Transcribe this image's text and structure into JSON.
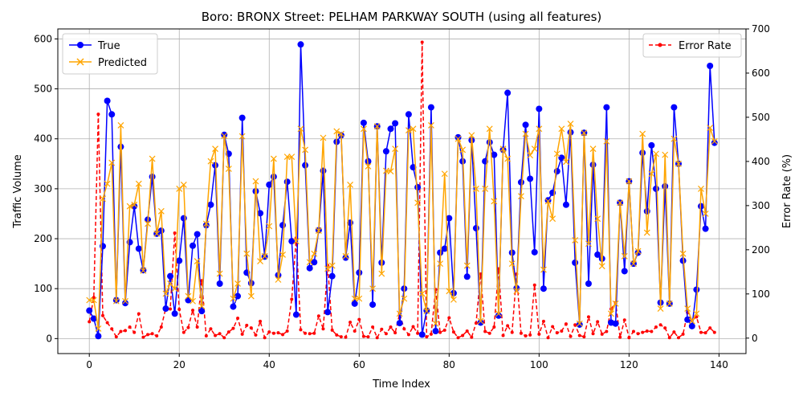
{
  "chart_data": {
    "type": "line",
    "title": "Boro: BRONX Street: PELHAM PARKWAY SOUTH (using all features)",
    "xlabel": "Time Index",
    "ylabel": "Traffic Volume",
    "y2label": "Error Rate (%)",
    "xlim": [
      -7,
      146
    ],
    "ylim": [
      -30,
      620
    ],
    "y2lim": [
      -35,
      700
    ],
    "x_ticks": [
      0,
      20,
      40,
      60,
      80,
      100,
      120,
      140
    ],
    "y_ticks": [
      0,
      100,
      200,
      300,
      400,
      500,
      600
    ],
    "y2_ticks": [
      0,
      100,
      200,
      300,
      400,
      500,
      600,
      700
    ],
    "grid": true,
    "legend_left": "upper-left",
    "legend_right": "upper-right",
    "colors": {
      "true": "#0000ff",
      "predicted": "#ffa500",
      "error": "#ff0000"
    },
    "series": [
      {
        "name": "True",
        "axis": "left",
        "marker": "circle",
        "style": "solid",
        "values": [
          56,
          40,
          5,
          185,
          476,
          449,
          77,
          384,
          71,
          193,
          265,
          180,
          137,
          238,
          324,
          210,
          216,
          60,
          125,
          50,
          156,
          241,
          77,
          186,
          209,
          55,
          227,
          268,
          347,
          110,
          408,
          370,
          64,
          85,
          442,
          132,
          111,
          295,
          251,
          164,
          308,
          324,
          127,
          227,
          314,
          195,
          48,
          589,
          347,
          141,
          153,
          217,
          336,
          53,
          125,
          394,
          407,
          162,
          232,
          70,
          132,
          432,
          355,
          68,
          425,
          152,
          375,
          420,
          431,
          31,
          100,
          449,
          343,
          303,
          8,
          56,
          463,
          15,
          172,
          180,
          241,
          91,
          403,
          355,
          124,
          397,
          221,
          32,
          355,
          393,
          368,
          46,
          378,
          492,
          172,
          101,
          313,
          428,
          320,
          173,
          460,
          100,
          277,
          292,
          335,
          362,
          268,
          413,
          152,
          28,
          412,
          110,
          348,
          168,
          160,
          463,
          32,
          30,
          272,
          135,
          315,
          150,
          172,
          372,
          255,
          387,
          300,
          72,
          305,
          70,
          463,
          350,
          156,
          38,
          25,
          98,
          265,
          220,
          546,
          392
        ]
      },
      {
        "name": "Predicted",
        "axis": "left",
        "marker": "x",
        "style": "solid",
        "values": [
          77,
          77,
          20,
          280,
          310,
          352,
          75,
          427,
          75,
          265,
          268,
          310,
          136,
          230,
          360,
          210,
          255,
          90,
          110,
          100,
          300,
          308,
          85,
          75,
          155,
          65,
          230,
          355,
          380,
          130,
          406,
          340,
          80,
          110,
          405,
          170,
          85,
          315,
          155,
          165,
          225,
          360,
          118,
          168,
          364,
          364,
          195,
          420,
          378,
          153,
          170,
          216,
          402,
          140,
          146,
          415,
          410,
          165,
          308,
          80,
          80,
          420,
          345,
          100,
          425,
          130,
          336,
          335,
          380,
          50,
          80,
          417,
          420,
          272,
          90,
          55,
          427,
          30,
          150,
          330,
          95,
          78,
          400,
          378,
          146,
          407,
          300,
          35,
          300,
          420,
          275,
          50,
          380,
          360,
          150,
          95,
          285,
          410,
          367,
          380,
          420,
          138,
          275,
          240,
          370,
          420,
          354,
          430,
          197,
          30,
          412,
          190,
          380,
          240,
          145,
          395,
          50,
          70,
          272,
          165,
          315,
          150,
          175,
          410,
          212,
          330,
          370,
          60,
          368,
          70,
          400,
          350,
          170,
          60,
          35,
          50,
          300,
          250,
          422,
          395
        ]
      },
      {
        "name": "Error Rate",
        "axis": "right",
        "marker": "dot",
        "style": "dashed",
        "values": [
          37,
          92,
          507,
          51,
          35,
          21,
          3,
          15,
          17,
          25,
          13,
          55,
          2,
          8,
          10,
          5,
          25,
          67,
          66,
          238,
          65,
          13,
          24,
          63,
          25,
          130,
          5,
          21,
          6,
          10,
          1,
          14,
          22,
          45,
          9,
          29,
          23,
          7,
          38,
          1,
          14,
          11,
          12,
          8,
          16,
          88,
          227,
          19,
          11,
          10,
          11,
          50,
          21,
          165,
          18,
          7,
          3,
          2,
          36,
          16,
          42,
          4,
          3,
          25,
          1,
          20,
          10,
          25,
          12,
          55,
          21,
          8,
          26,
          11,
          670,
          3,
          9,
          110,
          13,
          18,
          46,
          14,
          1,
          6,
          16,
          2,
          34,
          145,
          15,
          11,
          25,
          157,
          6,
          28,
          13,
          145,
          11,
          5,
          7,
          120,
          9,
          38,
          1,
          26,
          12,
          16,
          32,
          4,
          30,
          6,
          3,
          48,
          10,
          37,
          9,
          15,
          66,
          80,
          2,
          41,
          1,
          15,
          10,
          13,
          16,
          15,
          25,
          30,
          23,
          1,
          14,
          1,
          9,
          58,
          40,
          48,
          13,
          12,
          23,
          13
        ]
      }
    ]
  }
}
